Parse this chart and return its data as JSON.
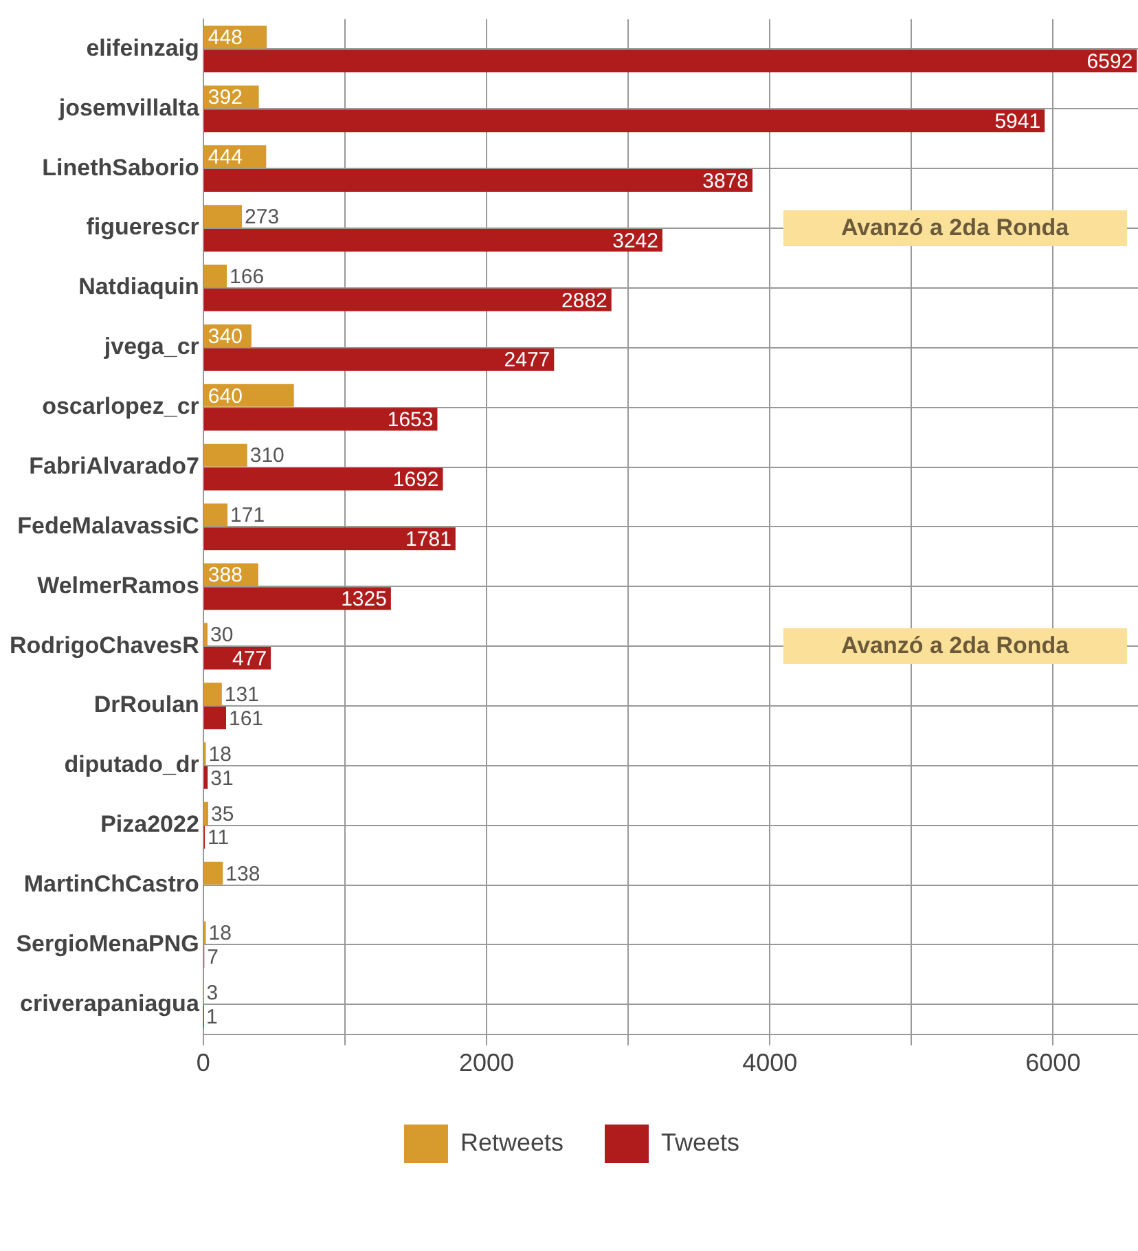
{
  "chart_data": {
    "type": "bar",
    "orientation": "horizontal",
    "categories": [
      "elifeinzaig",
      "josemvillalta",
      "LinethSaborio",
      "figuerescr",
      "Natdiaquin",
      "jvega_cr",
      "oscarlopez_cr",
      "FabriAlvarado7",
      "FedeMalavassiC",
      "WelmerRamos",
      "RodrigoChavesR",
      "DrRoulan",
      "diputado_dr",
      "Piza2022",
      "MartinChCastro",
      "SergioMenaPNG",
      "criverapaniagua"
    ],
    "series": [
      {
        "name": "Retweets",
        "color": "#d69a2d",
        "values": [
          448,
          392,
          444,
          273,
          166,
          340,
          640,
          310,
          171,
          388,
          30,
          131,
          18,
          35,
          138,
          18,
          3
        ]
      },
      {
        "name": "Tweets",
        "color": "#b01c1c",
        "values": [
          6592,
          5941,
          3878,
          3242,
          2882,
          2477,
          1653,
          1692,
          1781,
          1325,
          477,
          161,
          31,
          11,
          null,
          7,
          1
        ]
      }
    ],
    "xlim": [
      0,
      6600
    ],
    "xticks": [
      0,
      {
        "value": 1000,
        "label": null
      },
      2000,
      {
        "value": 3000,
        "label": null
      },
      4000,
      {
        "value": 5000,
        "label": null
      },
      6000
    ],
    "grid": true,
    "legend": "bottom",
    "data_labels": true,
    "annotations": [
      "Avanzó a 2da Ronda",
      "Avanzó a 2da Ronda"
    ]
  }
}
